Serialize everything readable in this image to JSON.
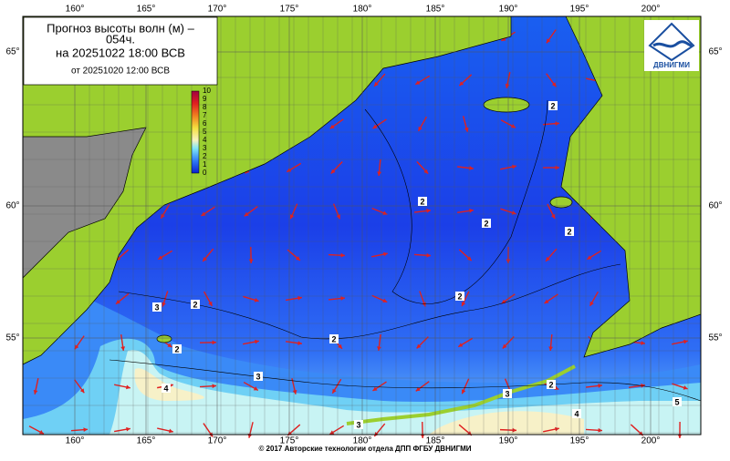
{
  "header": {
    "title_line1": "Прогноз высоты волн (м) –",
    "title_line2": "054ч.",
    "forecast_time": "на 20251022 18:00 ВСВ",
    "issue_time": "от 20251020 12:00 ВСВ"
  },
  "logo": {
    "text": "ДВНИГМИ"
  },
  "legend": {
    "labels": [
      "10",
      "9",
      "8",
      "7",
      "6",
      "5",
      "4",
      "3",
      "2",
      "1",
      "0"
    ]
  },
  "axes": {
    "lon_labels": [
      "160°",
      "165°",
      "170°",
      "175°",
      "180°",
      "185°",
      "190°",
      "195°",
      "200°"
    ],
    "lat_labels": [
      "65°",
      "60°",
      "55°"
    ]
  },
  "contour_labels": [
    "2",
    "2",
    "2",
    "2",
    "2",
    "2",
    "2",
    "2",
    "2",
    "3",
    "3",
    "3",
    "3",
    "4",
    "4",
    "5"
  ],
  "footer": {
    "text": "© 2017 Авторские технологии отдела ДПП ФГБУ ДВНИГМИ"
  }
}
